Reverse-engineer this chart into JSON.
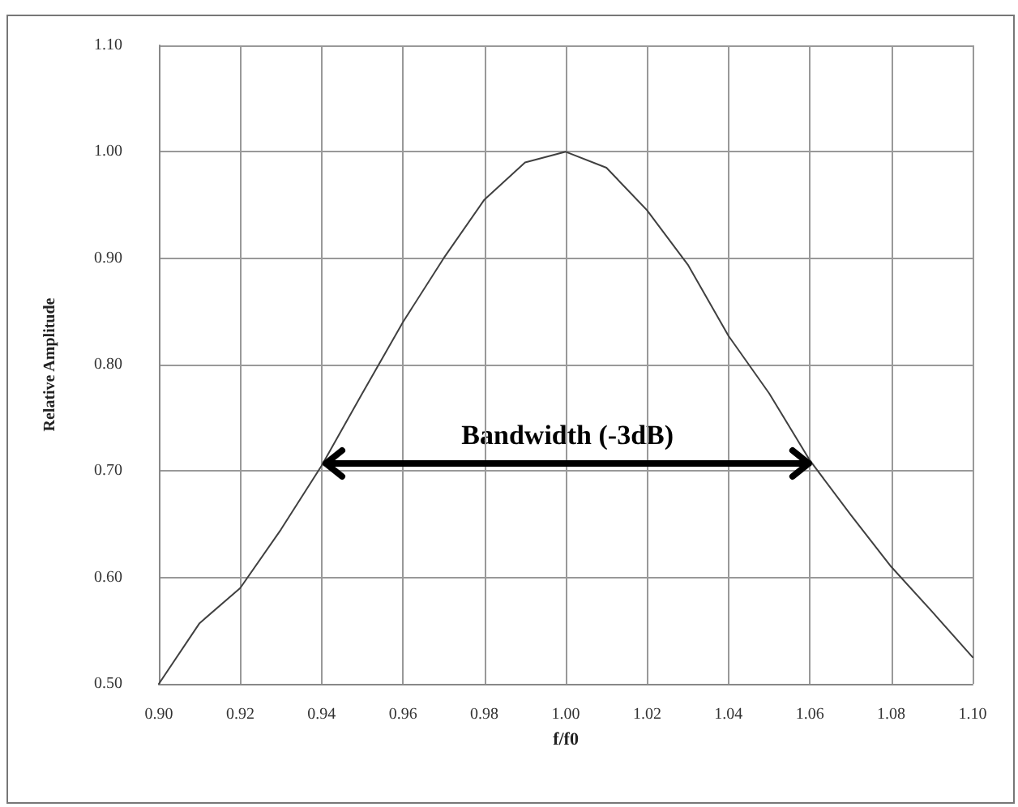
{
  "chart_data": {
    "type": "line",
    "xlabel": "f/f0",
    "ylabel": "Relative Amplitude",
    "x": [
      0.9,
      0.91,
      0.92,
      0.93,
      0.94,
      0.95,
      0.96,
      0.97,
      0.98,
      0.99,
      1.0,
      1.01,
      1.02,
      1.03,
      1.04,
      1.05,
      1.06,
      1.07,
      1.08,
      1.09,
      1.1
    ],
    "series": [
      {
        "color": "#404040",
        "values": [
          0.5,
          0.557,
          0.59,
          0.645,
          0.705,
          0.773,
          0.84,
          0.9,
          0.955,
          0.99,
          1.0,
          0.985,
          0.945,
          0.894,
          0.827,
          0.773,
          0.71,
          0.659,
          0.61,
          0.568,
          0.525
        ]
      }
    ],
    "xlim": [
      0.9,
      1.1
    ],
    "xticks": [
      {
        "value": 0.9,
        "label": "0.90"
      },
      0.92,
      0.94,
      0.96,
      0.98,
      {
        "value": 1.0,
        "label": "1.00"
      },
      1.02,
      1.04,
      1.06,
      1.08,
      {
        "value": 1.1,
        "label": "1.10"
      }
    ],
    "ylim": [
      0.5,
      1.1
    ],
    "yticks": [
      {
        "value": 0.5,
        "label": "0.50"
      },
      {
        "value": 0.6,
        "label": "0.60"
      },
      {
        "value": 0.7,
        "label": "0.70"
      },
      {
        "value": 0.8,
        "label": "0.80"
      },
      {
        "value": 0.9,
        "label": "0.90"
      },
      {
        "value": 1.0,
        "label": "1.00"
      },
      {
        "value": 1.1,
        "label": "1.10"
      }
    ],
    "ref_lines": [
      {
        "axis": "y",
        "value": 0.707,
        "label": "Bandwidth (-3dB)",
        "color": "#000000"
      }
    ],
    "grid": true,
    "marker": "none",
    "line_style": "solid"
  }
}
